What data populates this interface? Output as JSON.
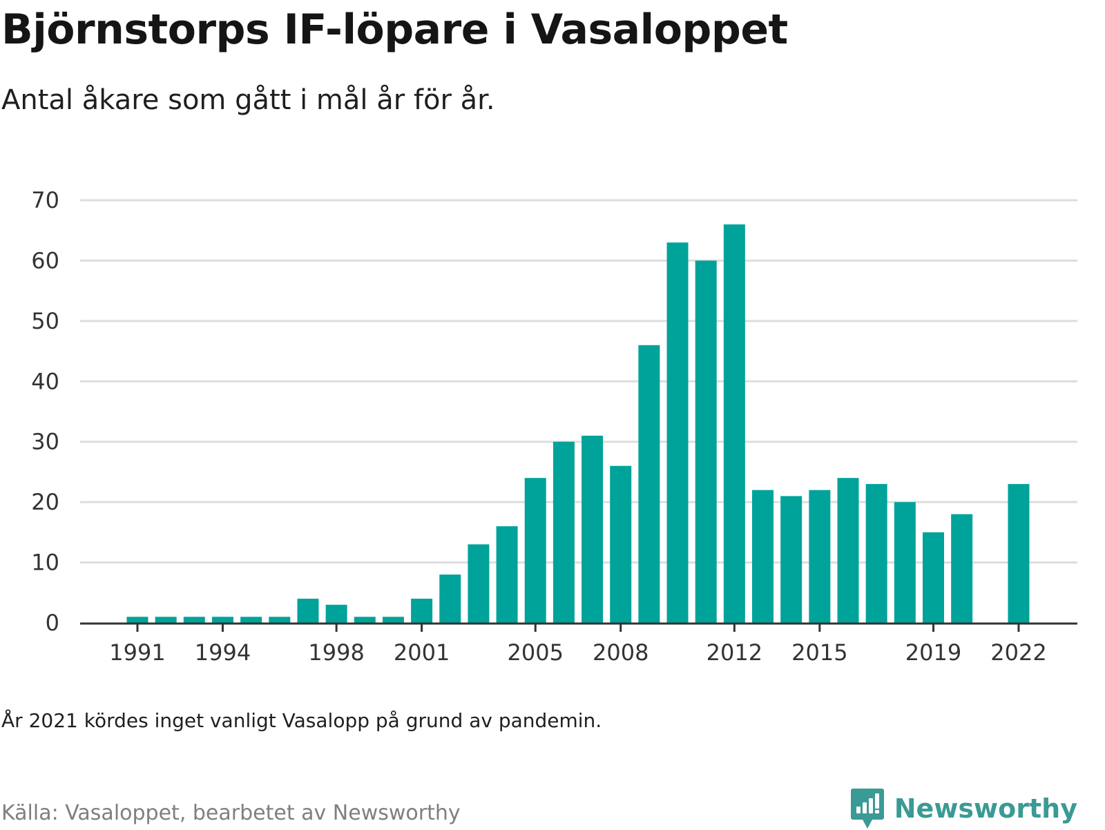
{
  "title": "Björnstorps IF-löpare i Vasaloppet",
  "subtitle": "Antal åkare som gått i mål år för år.",
  "note": "År 2021 kördes inget vanligt Vasalopp på grund av pandemin.",
  "source": "Källa: Vasaloppet, bearbetet av Newsworthy",
  "brand": {
    "name": "Newsworthy",
    "icon": "newsworthy-logo-icon"
  },
  "colors": {
    "bar": "#00a39a",
    "grid": "#dddddd",
    "axis": "#333333",
    "brand": "#3a9a95"
  },
  "chart_data": {
    "type": "bar",
    "x": [
      1991,
      1992,
      1993,
      1994,
      1995,
      1996,
      1997,
      1998,
      1999,
      2000,
      2001,
      2002,
      2003,
      2004,
      2005,
      2006,
      2007,
      2008,
      2009,
      2010,
      2011,
      2012,
      2013,
      2014,
      2015,
      2016,
      2017,
      2018,
      2019,
      2020,
      2021,
      2022
    ],
    "values": [
      1,
      1,
      1,
      1,
      1,
      1,
      4,
      3,
      1,
      1,
      4,
      8,
      13,
      16,
      24,
      30,
      31,
      26,
      46,
      63,
      60,
      66,
      22,
      21,
      22,
      24,
      23,
      20,
      15,
      18,
      null,
      23
    ],
    "x_tick_labels": [
      "1991",
      "1994",
      "1998",
      "2001",
      "2005",
      "2008",
      "2012",
      "2015",
      "2019",
      "2022"
    ],
    "y_ticks": [
      0,
      10,
      20,
      30,
      40,
      50,
      60,
      70
    ],
    "ylim": [
      0,
      70
    ],
    "grid": true,
    "legend": false
  }
}
